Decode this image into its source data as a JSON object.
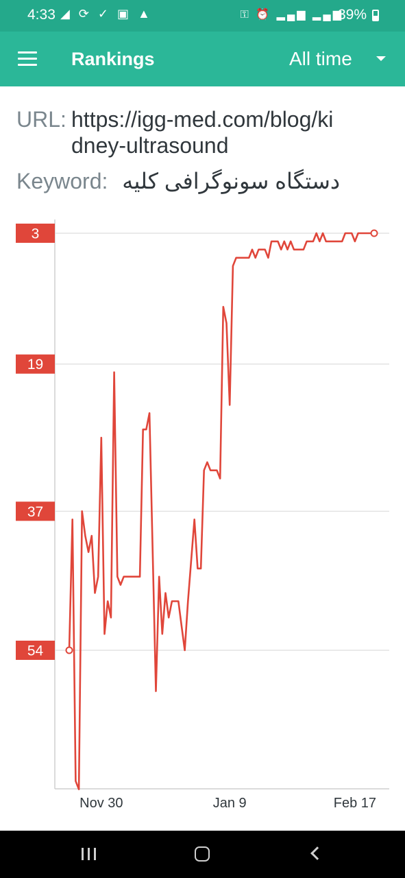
{
  "status_bar": {
    "time": "4:33",
    "left_icons": "◢ ⟳ ✓ ▣ ▲",
    "right_icons": "⚿ ⏰ ▂▄▆ ▂▄▆",
    "battery": "39%"
  },
  "app_bar": {
    "menu_icon": "hamburger-menu-icon",
    "title": "Rankings",
    "range": "All time",
    "dropdown_icon": "dropdown-arrow-icon"
  },
  "info": {
    "url_label": "URL:",
    "url_value": "https://igg-med.com/blog/kidney-ultrasound",
    "keyword_label": "Keyword:",
    "keyword_value": "دستگاه سونوگرافی کلیه"
  },
  "chart_data": {
    "type": "line",
    "y_axis_inverted": true,
    "ylim": [
      1,
      72
    ],
    "y_ticks": [
      3,
      19,
      37,
      54
    ],
    "x_tick_labels": [
      "Nov 30",
      "Jan 9",
      "Feb 17"
    ],
    "x_tick_days": [
      10,
      50,
      89
    ],
    "line_color": "#e0463a",
    "tick_badge_color": "#e0463a",
    "grid": true,
    "series": [
      {
        "x": [
          0,
          1,
          2,
          3,
          4,
          5,
          6,
          7,
          8,
          9,
          10,
          11,
          12,
          13,
          14,
          15,
          16,
          17,
          18,
          19,
          20,
          21,
          22,
          23,
          24,
          25,
          26,
          27,
          28,
          29,
          30,
          31,
          32,
          33,
          34,
          35,
          36,
          37,
          38,
          39,
          40,
          41,
          42,
          43,
          44,
          45,
          46,
          47,
          48,
          49,
          50,
          51,
          52,
          53,
          54,
          55,
          56,
          57,
          58,
          59,
          60,
          61,
          62,
          63,
          64,
          65,
          66,
          67,
          68,
          69,
          70,
          71,
          72,
          73,
          74,
          75,
          76,
          77,
          78,
          79,
          80,
          81,
          82,
          83,
          84,
          85,
          86,
          87,
          88,
          89,
          90,
          91,
          92,
          93,
          94,
          95
        ],
        "y": [
          54,
          38,
          70,
          71,
          37,
          40,
          42,
          40,
          47,
          45,
          28,
          52,
          48,
          50,
          20,
          45,
          46,
          45,
          45,
          45,
          45,
          45,
          45,
          27,
          27,
          25,
          42,
          59,
          45,
          52,
          47,
          50,
          48,
          48,
          48,
          51,
          54,
          48,
          43,
          38,
          44,
          44,
          32,
          31,
          32,
          32,
          32,
          33,
          12,
          14,
          24,
          7,
          6,
          6,
          6,
          6,
          6,
          5,
          6,
          5,
          5,
          5,
          6,
          4,
          4,
          4,
          5,
          4,
          5,
          4,
          5,
          5,
          5,
          5,
          4,
          4,
          4,
          3,
          4,
          3,
          4,
          4,
          4,
          4,
          4,
          4,
          3,
          3,
          3,
          4,
          3,
          3,
          3,
          3,
          3,
          3
        ]
      }
    ]
  }
}
